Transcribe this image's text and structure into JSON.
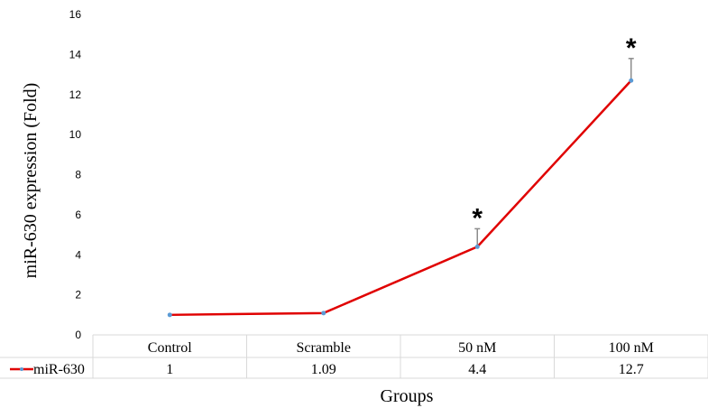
{
  "chart_data": {
    "type": "line",
    "categories": [
      "Control",
      "Scramble",
      "50 nM",
      "100 nM"
    ],
    "series": [
      {
        "name": "miR-630",
        "values": [
          1,
          1.09,
          4.4,
          12.7
        ],
        "color": "#e00000",
        "marker_color": "#5b9bd5"
      }
    ],
    "error_bars": [
      null,
      null,
      0.9,
      1.1
    ],
    "annotations": [
      "",
      "",
      "*",
      "*"
    ],
    "yticks": [
      "0",
      "2",
      "4",
      "6",
      "8",
      "10",
      "12",
      "14",
      "16"
    ],
    "ylim": [
      0,
      16
    ],
    "ylabel": "miR-630 expression (Fold)",
    "xlabel": "Groups",
    "data_table": {
      "row_label": "miR-630",
      "values": [
        "1",
        "1.09",
        "4.4",
        "12.7"
      ]
    },
    "grid": false
  }
}
